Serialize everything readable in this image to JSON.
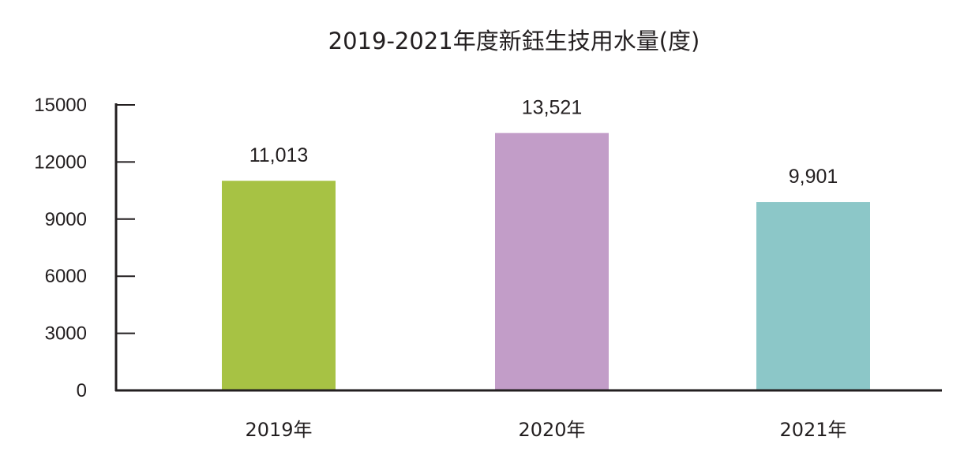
{
  "chart_data": {
    "type": "bar",
    "title": "2019-2021年度新鈺生技用水量(度)",
    "categories": [
      "2019年",
      "2020年",
      "2021年"
    ],
    "values": [
      11013,
      13521,
      9901
    ],
    "value_labels": [
      "11,013",
      "13,521",
      "9,901"
    ],
    "colors": [
      "#a7c244",
      "#c29dc8",
      "#8cc7c8"
    ],
    "xlabel": "",
    "ylabel": "",
    "ylim": [
      0,
      15000
    ],
    "yticks": [
      0,
      3000,
      6000,
      9000,
      12000,
      15000
    ],
    "ytick_labels": [
      "0",
      "3000",
      "6000",
      "9000",
      "12000",
      "15000"
    ],
    "grid": false,
    "legend": "none",
    "axis_color": "#231f20"
  }
}
